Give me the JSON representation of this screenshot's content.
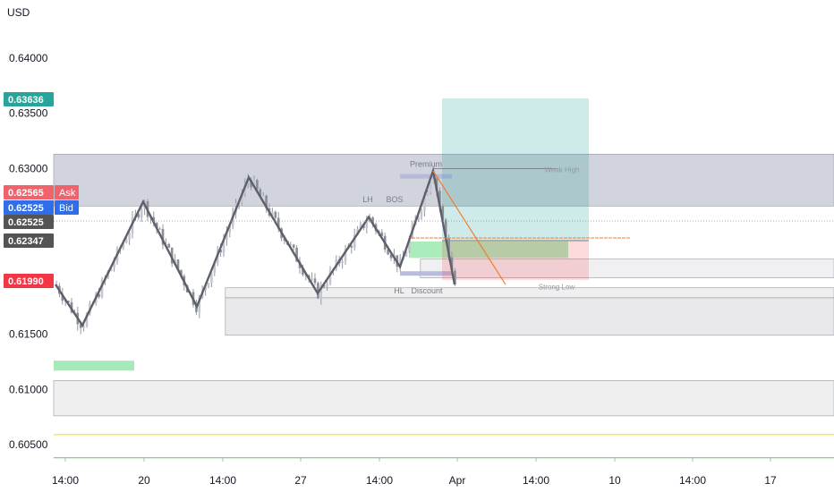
{
  "chart_data": {
    "type": "candlestick",
    "currency_label": "USD",
    "y_axis": {
      "range": [
        0.6031,
        0.646
      ],
      "ticks": [
        {
          "value": 0.64,
          "label": "0.64000"
        },
        {
          "value": 0.635,
          "label": "0.63500"
        },
        {
          "value": 0.63,
          "label": "0.63000"
        },
        {
          "value": 0.615,
          "label": "0.61500"
        },
        {
          "value": 0.61,
          "label": "0.61000"
        },
        {
          "value": 0.605,
          "label": "0.60500"
        }
      ]
    },
    "x_axis": {
      "ticks": [
        "14:00",
        "20",
        "14:00",
        "27",
        "14:00",
        "Apr",
        "14:00",
        "10",
        "14:00",
        "17"
      ]
    },
    "price_badges": [
      {
        "label": "0.63636",
        "value": 0.63636,
        "color": "#26a69a"
      },
      {
        "label": "0.62565",
        "value": 0.62565,
        "color": "#f0636b",
        "tag": "Ask"
      },
      {
        "label": "0.62525",
        "value": 0.62525,
        "color": "#2f6ee8",
        "tag": "Bid"
      },
      {
        "label": "0.62525",
        "value": 0.62525,
        "color": "#545454"
      },
      {
        "label": "0.62347",
        "value": 0.62347,
        "color": "#545454"
      },
      {
        "label": "0.61990",
        "value": 0.6199,
        "color": "#f23645"
      }
    ],
    "zones": [
      {
        "name": "supply-zone-top",
        "y": [
          0.6266,
          0.6313
        ],
        "x": [
          0,
          1
        ],
        "color": "#d1d4dc"
      },
      {
        "name": "demand-zone-mid",
        "y": [
          0.6149,
          0.6183
        ],
        "x": [
          0.22,
          1
        ],
        "color": "#e9e9ec"
      },
      {
        "name": "zone-upper-mid",
        "y": [
          0.6183,
          0.6192
        ],
        "x": [
          0.22,
          1
        ],
        "color": "#efefef"
      },
      {
        "name": "zone-low",
        "y": [
          0.6076,
          0.6108
        ],
        "x": [
          0,
          1
        ],
        "color": "#efefef"
      },
      {
        "name": "ob-right",
        "y": [
          0.6201,
          0.6218
        ],
        "x": [
          0.47,
          1
        ],
        "color": "#f0f0f2"
      }
    ],
    "position": {
      "entry": 0.62347,
      "take_profit": 0.63636,
      "stop_loss": 0.6199
    },
    "annotations": [
      {
        "text": "Premium",
        "value": 0.6303
      },
      {
        "text": "LH",
        "value": 0.6273
      },
      {
        "text": "BOS",
        "value": 0.6273
      },
      {
        "text": "HL",
        "value": 0.619
      },
      {
        "text": "Discount",
        "value": 0.619
      },
      {
        "text": "Weak High",
        "value": 0.63
      },
      {
        "text": "Strong Low",
        "value": 0.6194
      }
    ],
    "swing_line": [
      0.6195,
      0.6158,
      0.627,
      0.6175,
      0.6292,
      0.6187,
      0.6256,
      0.6211,
      0.6298,
      0.6195
    ],
    "level_lines": [
      {
        "value": 0.6059,
        "color": "#f5d90a"
      },
      {
        "value": 0.6038,
        "color": "#66bb6a"
      }
    ]
  }
}
